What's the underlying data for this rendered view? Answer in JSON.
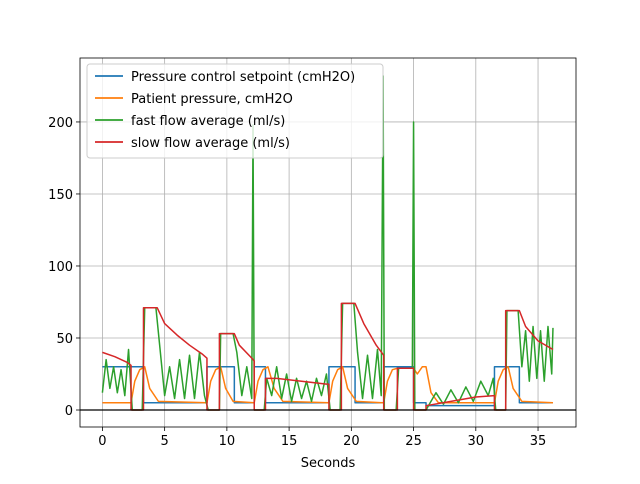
{
  "chart_data": {
    "type": "line",
    "xlabel": "Seconds",
    "xlim": [
      -1.8,
      38.05
    ],
    "ylim": [
      -11.8,
      244.4
    ],
    "xticks": [
      0,
      5,
      10,
      15,
      20,
      25,
      30,
      35
    ],
    "yticks": [
      0,
      50,
      100,
      150,
      200
    ],
    "grid": true,
    "hline": 0,
    "legend": "upper left",
    "series": [
      {
        "name": "Pressure control setpoint (cmH2O)",
        "color": "#1f77b4",
        "x": [
          0,
          3.3,
          3.3,
          8.4,
          8.4,
          10.6,
          10.6,
          12.2,
          12.2,
          13.1,
          13.1,
          18.2,
          18.2,
          20.3,
          20.3,
          22.6,
          22.6,
          25,
          25,
          26,
          26,
          31.5,
          31.5,
          33.5,
          33.5,
          36.2
        ],
        "values": [
          30,
          30,
          5,
          5,
          30,
          30,
          5,
          5,
          30,
          30,
          5,
          5,
          30,
          30,
          5,
          5,
          30,
          30,
          5,
          5,
          3,
          3,
          30,
          30,
          5,
          5
        ]
      },
      {
        "name": "Patient pressure, cmH2O",
        "color": "#ff7f0e",
        "x": [
          0,
          2.3,
          2.6,
          3,
          3.4,
          3.8,
          4.5,
          8.4,
          8.7,
          9.1,
          9.5,
          9.9,
          10.5,
          12.2,
          12.5,
          12.9,
          13.3,
          13.8,
          14.5,
          18.2,
          18.5,
          18.9,
          19.3,
          19.7,
          20.4,
          22.6,
          22.9,
          23.3,
          23.7,
          25,
          25.3,
          25.7,
          26,
          26.4,
          27,
          31.5,
          31.8,
          32.2,
          32.6,
          33,
          33.7,
          36.2
        ],
        "values": [
          5,
          5,
          20,
          28,
          30,
          15,
          6,
          5,
          20,
          28,
          30,
          15,
          6,
          5,
          20,
          28,
          30,
          15,
          6,
          5,
          20,
          28,
          30,
          15,
          6,
          5,
          20,
          28,
          29,
          29,
          25,
          30,
          30,
          12,
          5,
          5,
          20,
          28,
          30,
          15,
          6,
          5
        ]
      },
      {
        "name": "fast flow average (ml/s)",
        "color": "#2ca02c",
        "x": [
          0,
          0.3,
          0.6,
          0.9,
          1.2,
          1.5,
          1.8,
          2.1,
          2.4,
          3.2,
          3.4,
          4.3,
          4.6,
          5,
          5.4,
          5.8,
          6.2,
          6.6,
          7,
          7.4,
          7.8,
          8.2,
          8.5,
          9.4,
          9.5,
          10.5,
          10.8,
          11.2,
          11.6,
          12,
          12.1,
          12.2,
          13,
          13.2,
          13.6,
          14,
          14.4,
          14.8,
          15.2,
          15.6,
          16,
          16.4,
          16.8,
          17.2,
          17.6,
          18,
          18.3,
          19.1,
          19.3,
          20.2,
          20.5,
          20.9,
          21.3,
          21.7,
          22.1,
          22.4,
          22.55,
          22.65,
          23.6,
          23.8,
          24.9,
          25,
          25.1,
          26,
          26.2,
          26.8,
          27.4,
          28,
          28.6,
          29.2,
          29.8,
          30.4,
          31,
          31.4,
          31.6,
          32.4,
          32.5,
          33.4,
          33.7,
          34,
          34.3,
          34.6,
          34.9,
          35.2,
          35.5,
          35.8,
          36.1,
          36.2
        ],
        "values": [
          12,
          35,
          15,
          30,
          12,
          28,
          10,
          42,
          0,
          0,
          71,
          71,
          45,
          10,
          30,
          8,
          35,
          8,
          38,
          8,
          40,
          10,
          0,
          0,
          53,
          53,
          40,
          10,
          30,
          8,
          198,
          0,
          0,
          22,
          10,
          30,
          8,
          25,
          6,
          22,
          8,
          20,
          6,
          22,
          10,
          25,
          0,
          0,
          74,
          74,
          40,
          8,
          38,
          8,
          42,
          10,
          232,
          0,
          0,
          29,
          29,
          200,
          0,
          0,
          3,
          12,
          4,
          14,
          5,
          16,
          6,
          20,
          10,
          22,
          0,
          0,
          69,
          69,
          30,
          55,
          20,
          58,
          22,
          55,
          20,
          58,
          25,
          57
        ]
      },
      {
        "name": "slow flow average (ml/s)",
        "color": "#d62728",
        "x": [
          0,
          1,
          2,
          2.3,
          2.3,
          3.3,
          3.3,
          4.4,
          5,
          6,
          7,
          8,
          8.4,
          8.4,
          9.4,
          9.4,
          10.6,
          11,
          12,
          12.2,
          12.2,
          13.1,
          13.1,
          14,
          16,
          18,
          18.2,
          18.2,
          19.2,
          19.2,
          20.3,
          21,
          22,
          22.6,
          22.6,
          23.7,
          23.7,
          25,
          25,
          26,
          26,
          28,
          30,
          31.5,
          31.5,
          32.4,
          32.4,
          33.5,
          34,
          35,
          36.2
        ],
        "values": [
          40,
          37,
          33,
          31,
          0,
          0,
          71,
          71,
          60,
          52,
          45,
          39,
          36,
          0,
          0,
          53,
          53,
          45,
          36,
          34,
          0,
          0,
          22,
          22,
          20,
          18,
          18,
          0,
          0,
          74,
          74,
          60,
          45,
          38,
          0,
          0,
          29,
          29,
          0,
          0,
          3,
          6,
          9,
          10,
          0,
          0,
          69,
          69,
          58,
          48,
          42
        ]
      }
    ]
  }
}
